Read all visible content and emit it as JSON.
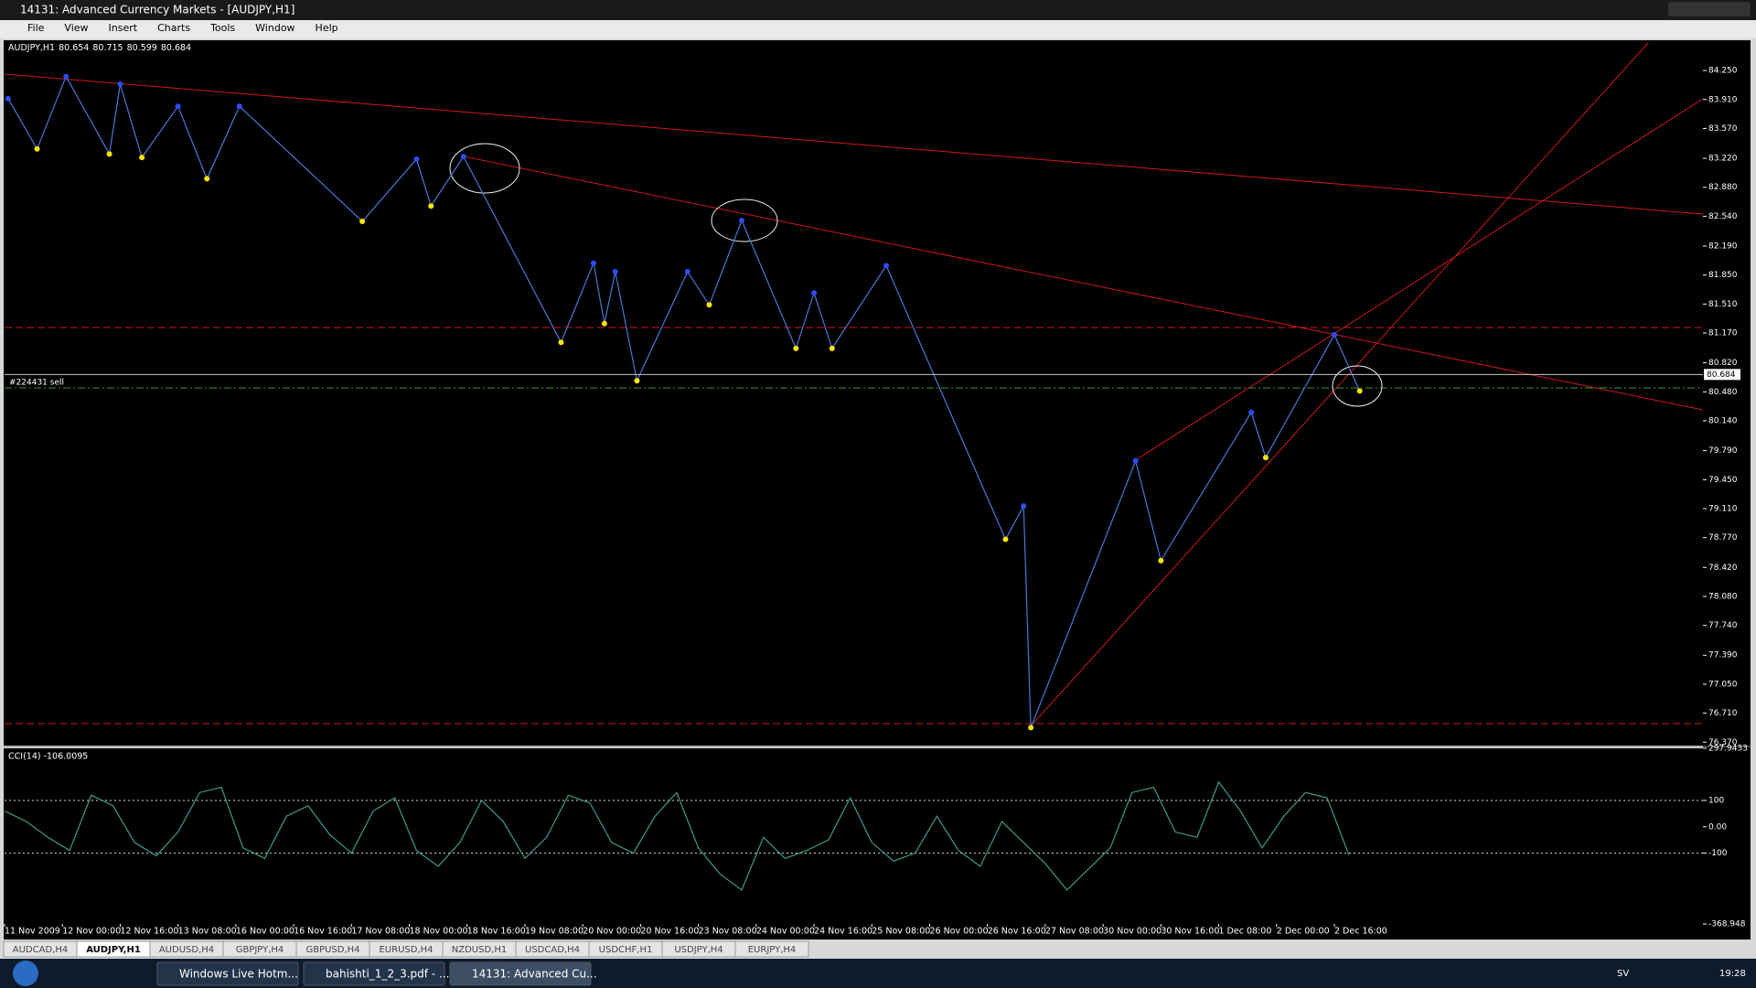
{
  "window": {
    "title": "14131: Advanced Currency Markets - [AUDJPY,H1]"
  },
  "menu": [
    "File",
    "View",
    "Insert",
    "Charts",
    "Tools",
    "Window",
    "Help"
  ],
  "chart_data": [
    {
      "type": "line",
      "symbol": "AUDJPY,H1",
      "ohlc": [
        80.654,
        80.715,
        80.599,
        80.684
      ],
      "current_price": 80.684,
      "color": "#4a78d8",
      "x": [
        1,
        9,
        17,
        29,
        32,
        38,
        48,
        56,
        65,
        99,
        114,
        118,
        127,
        154,
        163,
        166,
        169,
        175,
        189,
        195,
        204,
        219,
        224,
        229,
        244,
        277,
        282,
        284,
        313,
        320,
        345,
        349,
        368,
        375
      ],
      "values": [
        83.92,
        83.33,
        84.18,
        83.27,
        84.09,
        83.23,
        83.83,
        82.98,
        83.83,
        82.48,
        83.21,
        82.66,
        83.24,
        81.06,
        81.99,
        81.28,
        81.89,
        80.61,
        81.89,
        81.5,
        82.49,
        80.99,
        81.64,
        80.99,
        81.96,
        78.75,
        79.14,
        76.54,
        79.67,
        78.5,
        80.24,
        79.71,
        81.15,
        80.49
      ],
      "xlim": [
        0,
        470
      ],
      "xticks": [
        {
          "value": 0,
          "label": "11 Nov 2009"
        },
        {
          "value": 16,
          "label": "12 Nov 00:00"
        },
        {
          "value": 32,
          "label": "12 Nov 16:00"
        },
        {
          "value": 48,
          "label": "13 Nov 08:00"
        },
        {
          "value": 64,
          "label": "16 Nov 00:00"
        },
        {
          "value": 80,
          "label": "16 Nov 16:00"
        },
        {
          "value": 96,
          "label": "17 Nov 08:00"
        },
        {
          "value": 112,
          "label": "18 Nov 00:00"
        },
        {
          "value": 128,
          "label": "18 Nov 16:00"
        },
        {
          "value": 144,
          "label": "19 Nov 08:00"
        },
        {
          "value": 160,
          "label": "20 Nov 00:00"
        },
        {
          "value": 176,
          "label": "20 Nov 16:00"
        },
        {
          "value": 192,
          "label": "23 Nov 08:00"
        },
        {
          "value": 208,
          "label": "24 Nov 00:00"
        },
        {
          "value": 224,
          "label": "24 Nov 16:00"
        },
        {
          "value": 240,
          "label": "25 Nov 08:00"
        },
        {
          "value": 256,
          "label": "26 Nov 00:00"
        },
        {
          "value": 272,
          "label": "26 Nov 16:00"
        },
        {
          "value": 288,
          "label": "27 Nov 08:00"
        },
        {
          "value": 304,
          "label": "30 Nov 00:00"
        },
        {
          "value": 320,
          "label": "30 Nov 16:00"
        },
        {
          "value": 336,
          "label": "1 Dec 08:00"
        },
        {
          "value": 352,
          "label": "2 Dec 00:00"
        },
        {
          "value": 368,
          "label": "2 Dec 16:00"
        }
      ],
      "ylim": [
        76.33,
        84.605
      ],
      "yticks": [
        {
          "value": 84.25,
          "label": "84.250"
        },
        {
          "value": 83.91,
          "label": "83.910"
        },
        {
          "value": 83.57,
          "label": "83.570"
        },
        {
          "value": 83.22,
          "label": "83.220"
        },
        {
          "value": 82.88,
          "label": "82.880"
        },
        {
          "value": 82.54,
          "label": "82.540"
        },
        {
          "value": 82.19,
          "label": "82.190"
        },
        {
          "value": 81.85,
          "label": "81.850"
        },
        {
          "value": 81.51,
          "label": "81.510"
        },
        {
          "value": 81.17,
          "label": "81.170"
        },
        {
          "value": 80.82,
          "label": "80.820"
        },
        {
          "value": 80.48,
          "label": "80.480"
        },
        {
          "value": 80.14,
          "label": "80.140"
        },
        {
          "value": 79.79,
          "label": "79.790"
        },
        {
          "value": 79.45,
          "label": "79.450"
        },
        {
          "value": 79.11,
          "label": "79.110"
        },
        {
          "value": 78.77,
          "label": "78.770"
        },
        {
          "value": 78.42,
          "label": "78.420"
        },
        {
          "value": 78.08,
          "label": "78.080"
        },
        {
          "value": 77.74,
          "label": "77.740"
        },
        {
          "value": 77.39,
          "label": "77.390"
        },
        {
          "value": 77.05,
          "label": "77.050"
        },
        {
          "value": 76.71,
          "label": "76.710"
        },
        {
          "value": 76.37,
          "label": "76.370"
        }
      ]
    },
    {
      "type": "line",
      "title": "CCI(14) -106.0095",
      "color": "#3f9a8c",
      "xlim": [
        0,
        470
      ],
      "x": [
        0,
        6,
        12,
        18,
        24,
        30,
        36,
        42,
        48,
        54,
        60,
        66,
        72,
        78,
        84,
        90,
        96,
        102,
        108,
        114,
        120,
        126,
        132,
        138,
        144,
        150,
        156,
        162,
        168,
        174,
        180,
        186,
        192,
        198,
        204,
        210,
        216,
        222,
        228,
        234,
        240,
        246,
        252,
        258,
        264,
        270,
        276,
        282,
        288,
        294,
        300,
        306,
        312,
        318,
        324,
        330,
        336,
        342,
        348,
        354,
        360,
        366,
        372
      ],
      "values": [
        60,
        20,
        -40,
        -90,
        120,
        80,
        -60,
        -110,
        -20,
        130,
        150,
        -80,
        -120,
        40,
        80,
        -30,
        -100,
        60,
        110,
        -90,
        -150,
        -60,
        100,
        20,
        -120,
        -40,
        120,
        90,
        -60,
        -100,
        40,
        130,
        -80,
        -180,
        -240,
        -40,
        -120,
        -90,
        -50,
        110,
        -60,
        -130,
        -100,
        40,
        -90,
        -150,
        20,
        -60,
        -140,
        -240,
        -160,
        -80,
        130,
        150,
        -20,
        -40,
        170,
        60,
        -80,
        40,
        130,
        110,
        -106.0095
      ],
      "ylim": [
        -368.948,
        297.9433
      ],
      "yticks": [
        297.9433,
        100,
        {
          "value": 0,
          "label": "0.00"
        },
        -100,
        -368.948
      ]
    }
  ],
  "order_label": "#224431 sell",
  "tabs": [
    "AUDCAD,H4",
    "AUDJPY,H1",
    "AUDUSD,H4",
    "GBPJPY,H4",
    "GBPUSD,H4",
    "EURUSD,H4",
    "NZDUSD,H1",
    "USDCAD,H4",
    "USDCHF,H1",
    "USDJPY,H4",
    "EURJPY,H4"
  ],
  "active_tab": "AUDJPY,H1",
  "taskbar": {
    "items": [
      "Windows Live Hotm...",
      "bahishti_1_2_3.pdf - ...",
      "14131: Advanced Cu..."
    ],
    "language": "SV",
    "clock": "19:28"
  }
}
